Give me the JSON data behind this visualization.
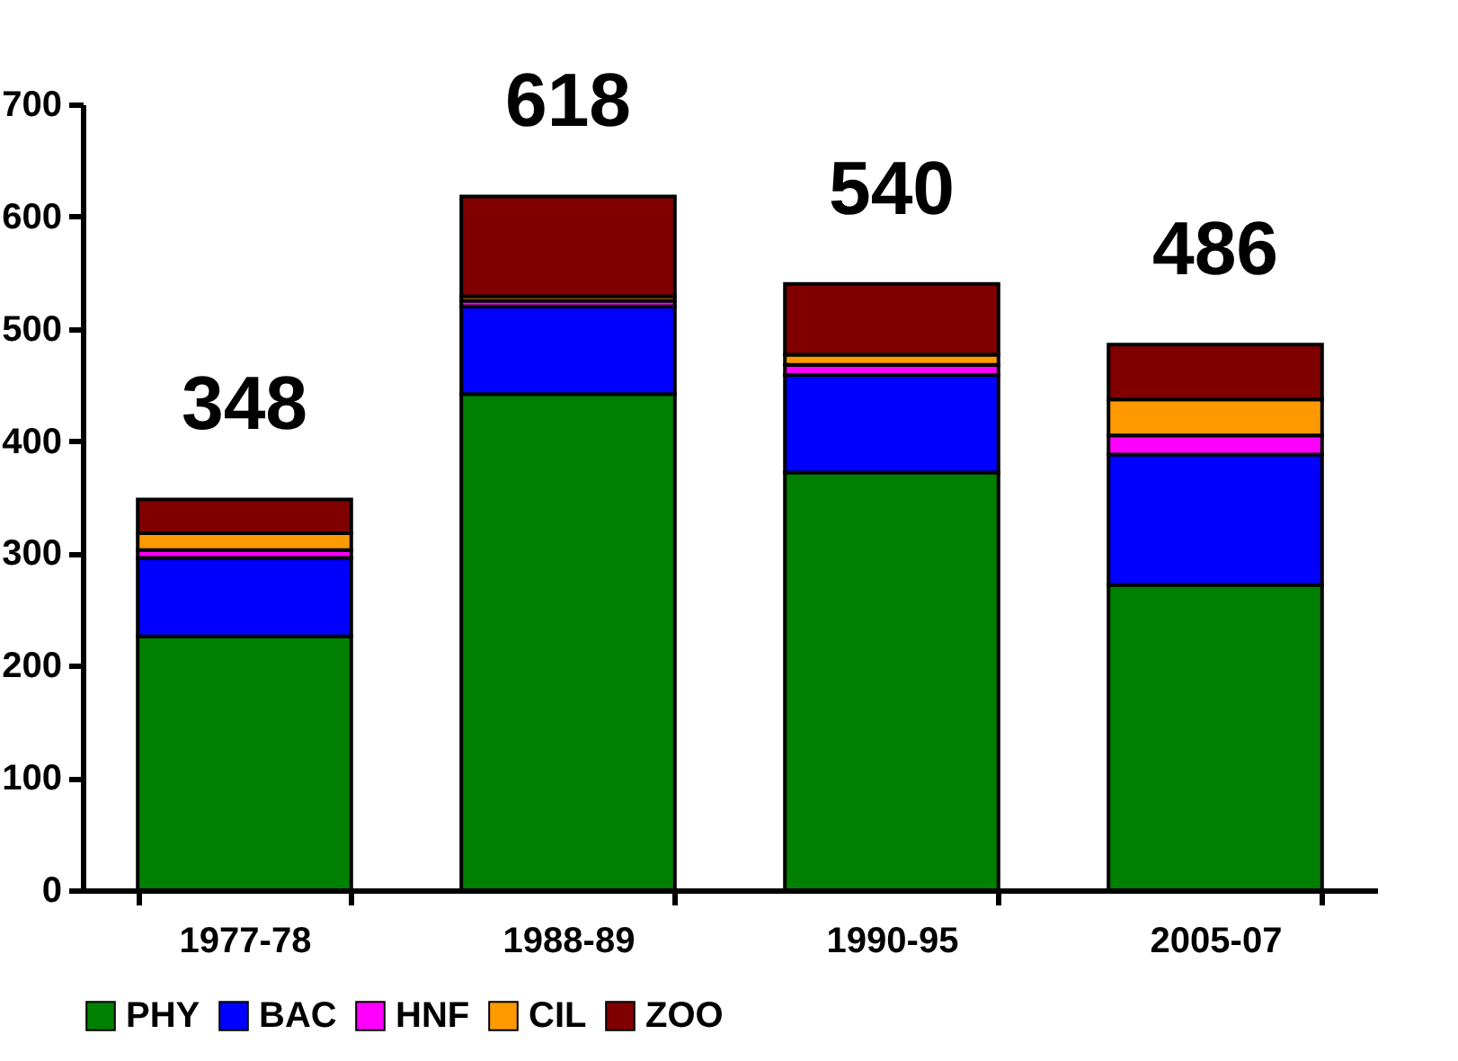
{
  "chart_data": {
    "type": "bar",
    "stacked": true,
    "categories": [
      "1977-78",
      "1988-89",
      "1990-95",
      "2005-07"
    ],
    "series": [
      {
        "name": "PHY",
        "color": "#008000",
        "values": [
          226,
          442,
          372,
          272
        ]
      },
      {
        "name": "BAC",
        "color": "#0000ff",
        "values": [
          70,
          78,
          87,
          116
        ]
      },
      {
        "name": "HNF",
        "color": "#ff00ff",
        "values": [
          7,
          5,
          9,
          17
        ]
      },
      {
        "name": "CIL",
        "color": "#ff9900",
        "values": [
          15,
          4,
          9,
          32
        ]
      },
      {
        "name": "ZOO",
        "color": "#800000",
        "values": [
          30,
          89,
          63,
          49
        ]
      }
    ],
    "totals": [
      "348",
      "618",
      "540",
      "486"
    ],
    "ylim": [
      0,
      700
    ],
    "yticks": [
      0,
      100,
      200,
      300,
      400,
      500,
      600,
      700
    ],
    "grid": false,
    "legend": "bottom"
  }
}
